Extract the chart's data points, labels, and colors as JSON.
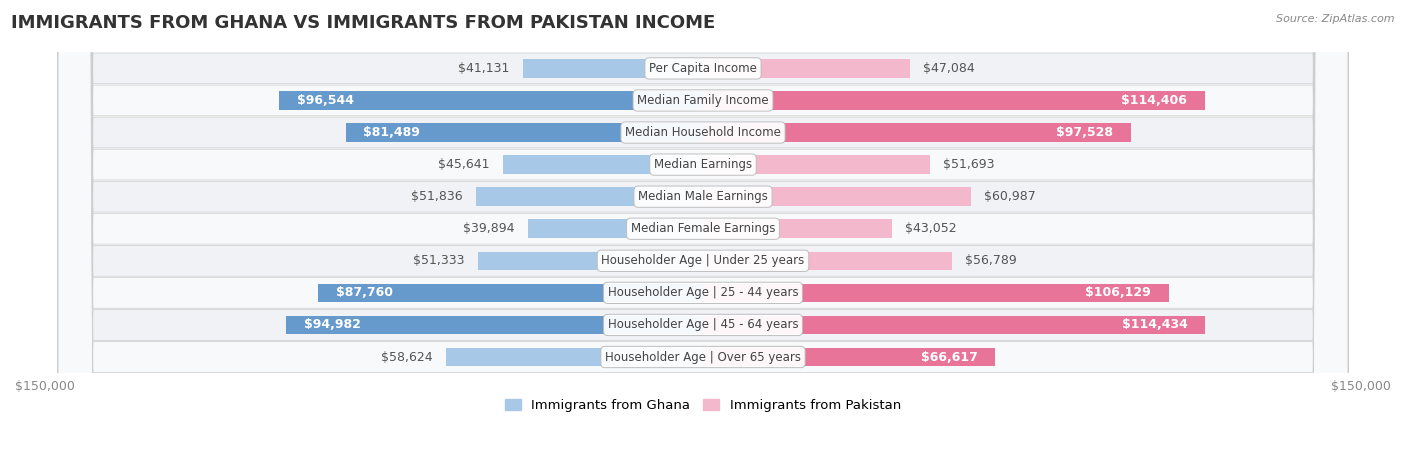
{
  "title": "IMMIGRANTS FROM GHANA VS IMMIGRANTS FROM PAKISTAN INCOME",
  "source": "Source: ZipAtlas.com",
  "categories": [
    "Per Capita Income",
    "Median Family Income",
    "Median Household Income",
    "Median Earnings",
    "Median Male Earnings",
    "Median Female Earnings",
    "Householder Age | Under 25 years",
    "Householder Age | 25 - 44 years",
    "Householder Age | 45 - 64 years",
    "Householder Age | Over 65 years"
  ],
  "ghana_values": [
    41131,
    96544,
    81489,
    45641,
    51836,
    39894,
    51333,
    87760,
    94982,
    58624
  ],
  "pakistan_values": [
    47084,
    114406,
    97528,
    51693,
    60987,
    43052,
    56789,
    106129,
    114434,
    66617
  ],
  "ghana_labels": [
    "$41,131",
    "$96,544",
    "$81,489",
    "$45,641",
    "$51,836",
    "$39,894",
    "$51,333",
    "$87,760",
    "$94,982",
    "$58,624"
  ],
  "pakistan_labels": [
    "$47,084",
    "$114,406",
    "$97,528",
    "$51,693",
    "$60,987",
    "$43,052",
    "$56,789",
    "$106,129",
    "$114,434",
    "$66,617"
  ],
  "ghana_color_light": "#a8c8e8",
  "ghana_color_dark": "#6699cc",
  "pakistan_color_light": "#f4b8cc",
  "pakistan_color_dark": "#e8749a",
  "inside_label_threshold": 65000,
  "max_value": 150000,
  "bar_height": 0.58,
  "legend_ghana": "Immigrants from Ghana",
  "legend_pakistan": "Immigrants from Pakistan",
  "background_color": "#ffffff",
  "row_even_color": "#f0f2f5",
  "row_odd_color": "#f8f9fb",
  "label_fontsize": 9.0,
  "title_fontsize": 13,
  "category_fontsize": 8.5,
  "axis_label_fontsize": 9
}
